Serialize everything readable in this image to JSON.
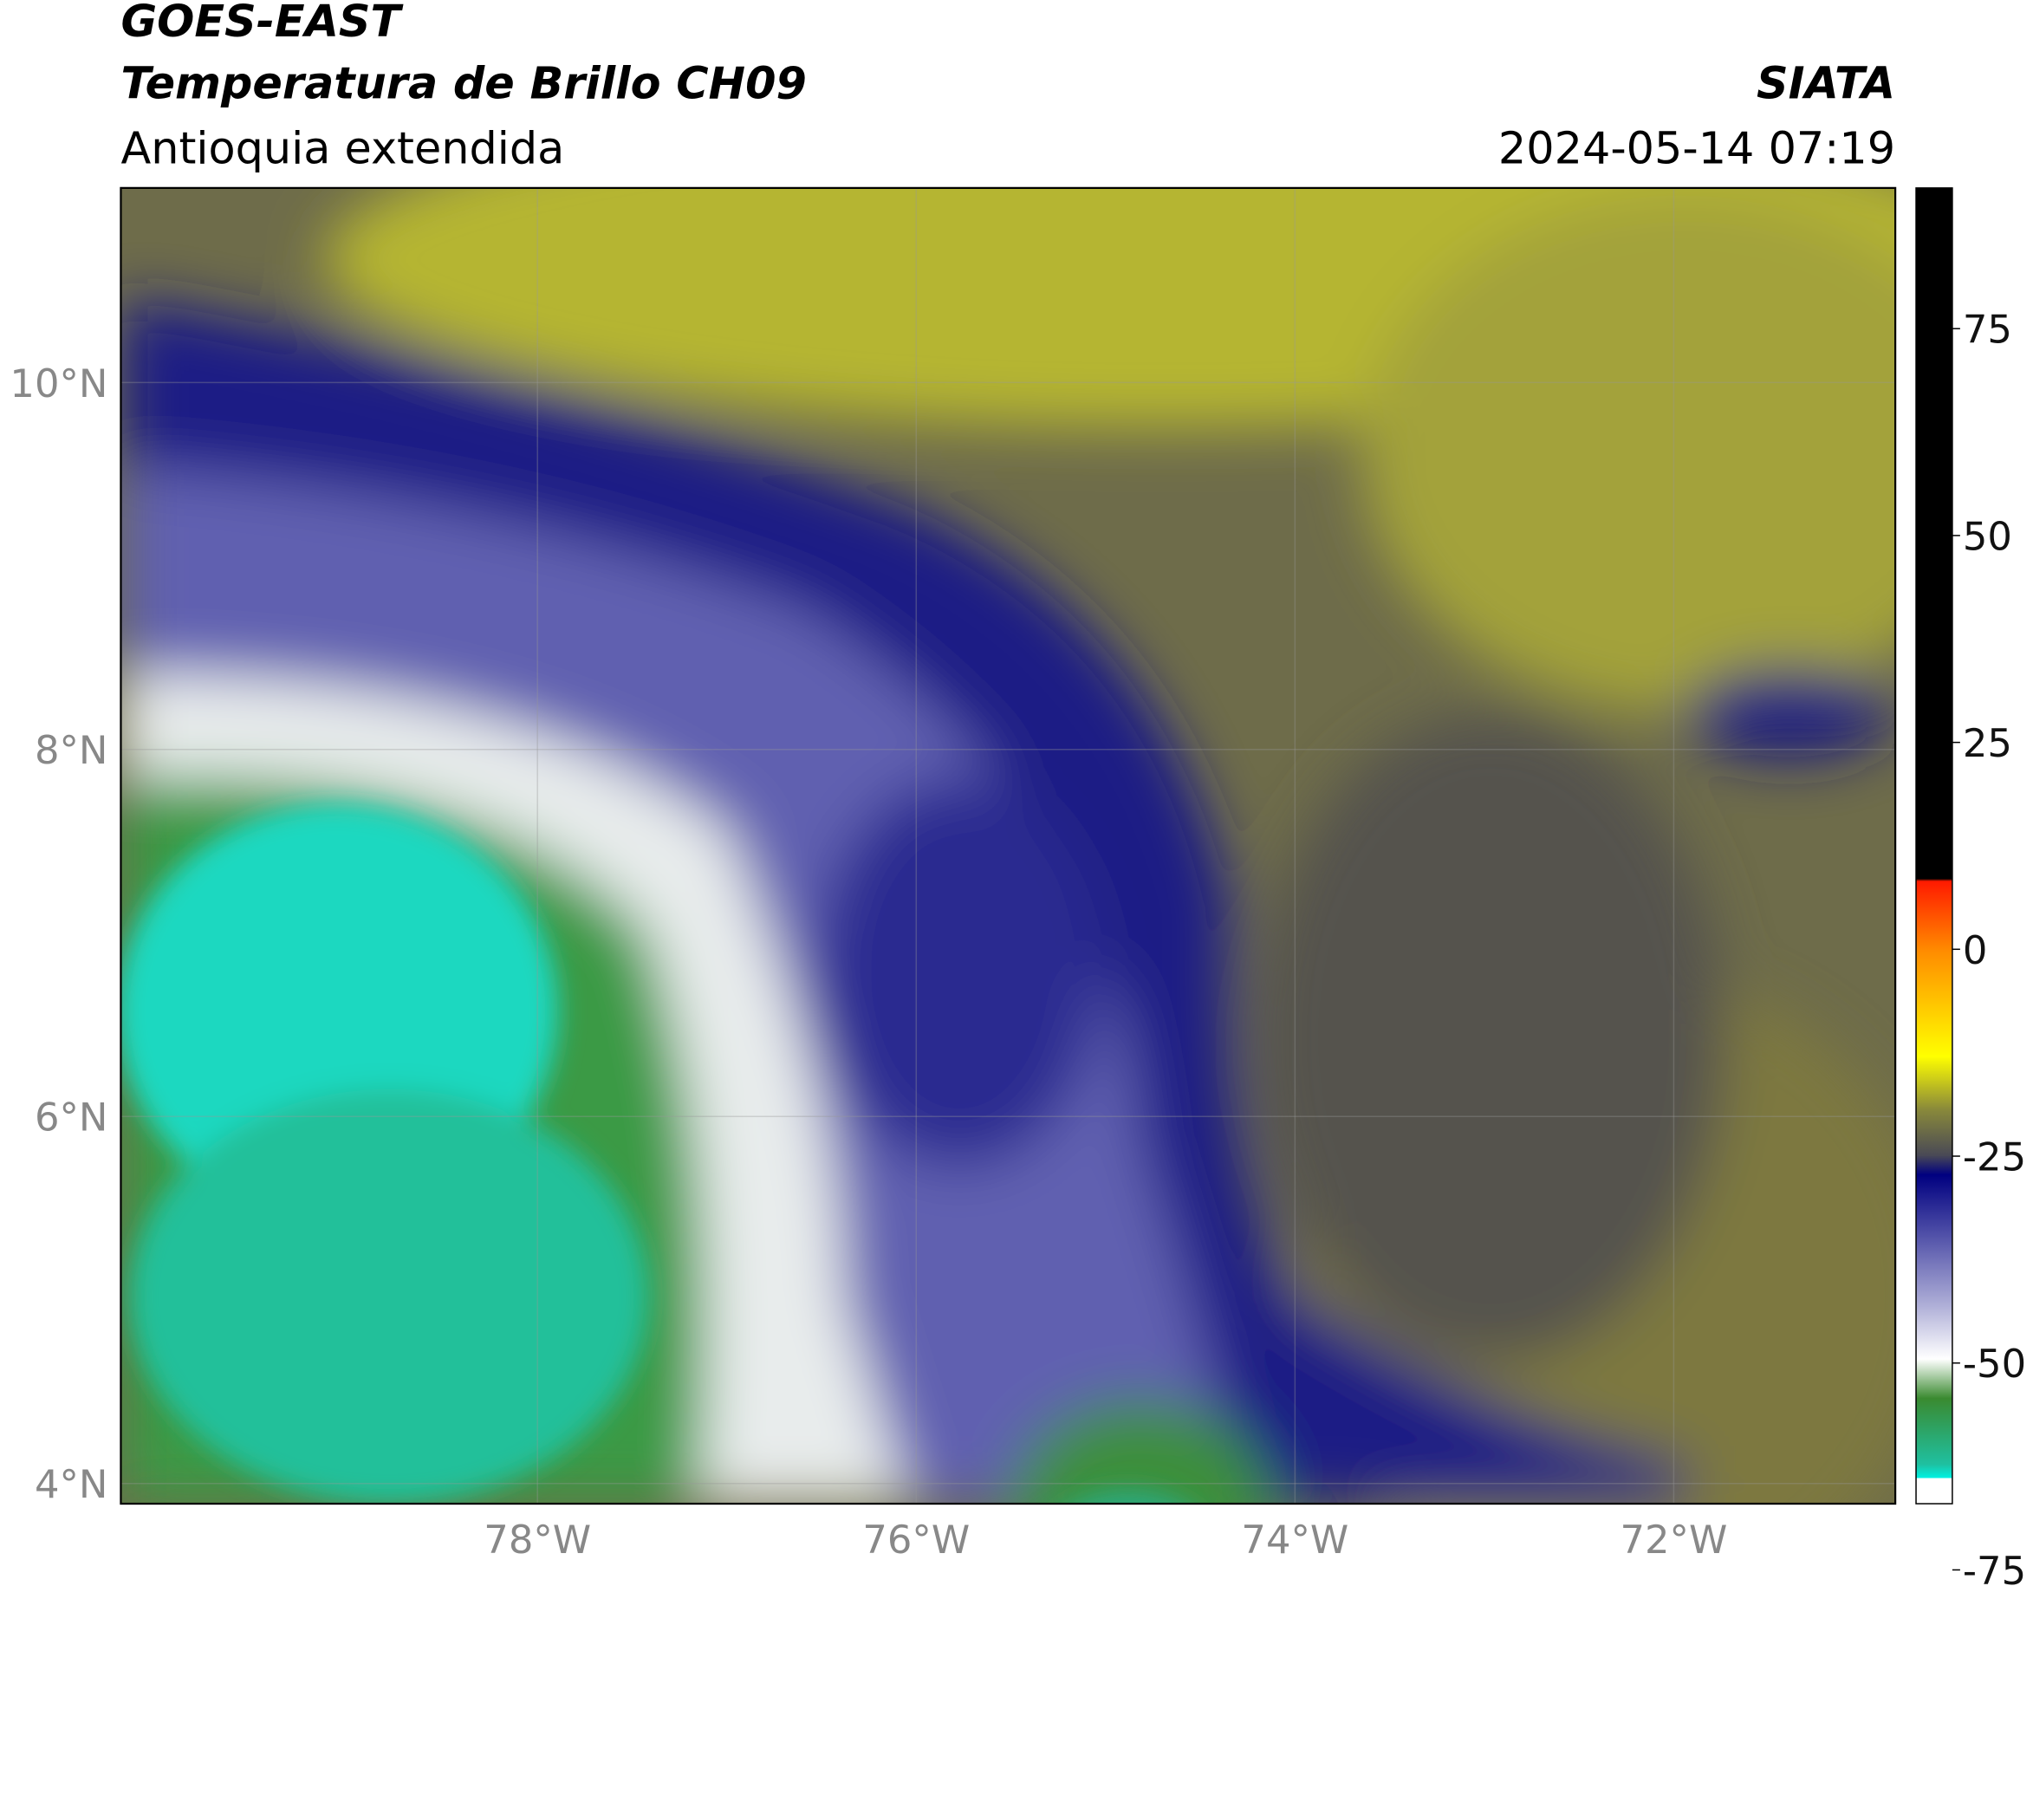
{
  "header": {
    "title_line1": "GOES-EAST",
    "title_line2": "Temperatura de Brillo CH09",
    "subtitle": "Antioquia extendida",
    "source": "SIATA",
    "datetime": "2024-05-14 07:19"
  },
  "map": {
    "xlim": [
      -80.2,
      -70.83
    ],
    "ylim": [
      3.89,
      11.06
    ],
    "xticks": [
      {
        "value": -78,
        "label": "78°W"
      },
      {
        "value": -76,
        "label": "76°W"
      },
      {
        "value": -74,
        "label": "74°W"
      },
      {
        "value": -72,
        "label": "72°W"
      }
    ],
    "yticks": [
      {
        "value": 10,
        "label": "10°N"
      },
      {
        "value": 8,
        "label": "8°N"
      },
      {
        "value": 6,
        "label": "6°N"
      },
      {
        "value": 4,
        "label": "4°N"
      }
    ],
    "grid": true
  },
  "colorbar": {
    "lim": [
      -67,
      92
    ],
    "ticks": [
      75,
      50,
      25,
      0,
      -25,
      -50,
      -75
    ]
  }
}
